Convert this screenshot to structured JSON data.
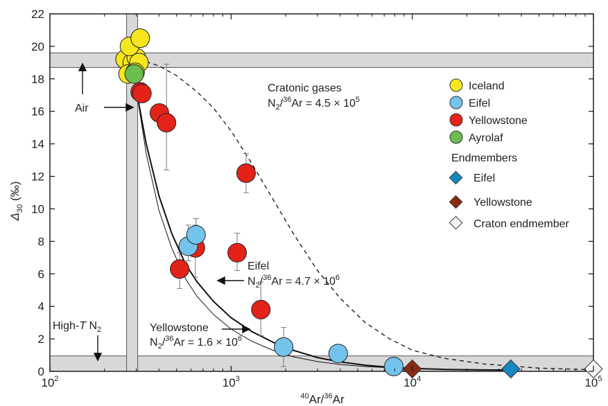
{
  "chart_data": {
    "type": "scatter",
    "xscale": "log",
    "xlim": [
      100,
      100000
    ],
    "ylim": [
      0,
      22
    ],
    "xlabel_sup": "40",
    "xlabel_mid": "Ar/",
    "xlabel_sup2": "36",
    "xlabel_end": "Ar",
    "ylabel_symbol": "Δ",
    "ylabel_sub": "30",
    "ylabel_unit": " (‰)",
    "x_ticks": [
      {
        "value": 100,
        "base": "10",
        "exp": "2"
      },
      {
        "value": 1000,
        "base": "10",
        "exp": "3"
      },
      {
        "value": 10000,
        "base": "10",
        "exp": "4"
      },
      {
        "value": 100000,
        "base": "10",
        "exp": "5"
      }
    ],
    "y_ticks": [
      0,
      2,
      4,
      6,
      8,
      10,
      12,
      14,
      16,
      18,
      20,
      22
    ],
    "colors": {
      "Iceland": "#f5e61e",
      "Eifel": "#74c3ec",
      "Yellowstone": "#e32219",
      "Ayrolaf": "#6bbd4e",
      "Eifel_endmember": "#1787c3",
      "Yellowstone_endmember": "#8a2a12",
      "Craton_endmember": "#f4f4f4",
      "band": "#d8d8d8"
    },
    "series": [
      {
        "name": "Iceland",
        "marker": "circle",
        "points": [
          {
            "x": 260,
            "y": 19.2
          },
          {
            "x": 285,
            "y": 19.0
          },
          {
            "x": 300,
            "y": 19.3
          },
          {
            "x": 310,
            "y": 19.0
          },
          {
            "x": 270,
            "y": 18.3
          },
          {
            "x": 295,
            "y": 18.4
          },
          {
            "x": 275,
            "y": 20.0
          },
          {
            "x": 315,
            "y": 20.5
          }
        ]
      },
      {
        "name": "Ayrolaf",
        "marker": "circle",
        "points": [
          {
            "x": 292,
            "y": 18.3
          }
        ]
      },
      {
        "name": "Yellowstone",
        "marker": "circle",
        "points": [
          {
            "x": 315,
            "y": 17.2,
            "err_lo": 17.2,
            "err_hi": 17.2
          },
          {
            "x": 322,
            "y": 17.1
          },
          {
            "x": 402,
            "y": 15.9
          },
          {
            "x": 440,
            "y": 15.3,
            "err_lo": 12.4,
            "err_hi": 18.9
          },
          {
            "x": 520,
            "y": 6.3,
            "err_lo": 5.1,
            "err_hi": 7.3
          },
          {
            "x": 635,
            "y": 7.6,
            "err_lo": 5.8,
            "err_hi": 9.0
          },
          {
            "x": 1080,
            "y": 7.3,
            "err_lo": 6.2,
            "err_hi": 8.5
          },
          {
            "x": 1210,
            "y": 12.2,
            "err_lo": 11.0,
            "err_hi": 13.4
          },
          {
            "x": 1460,
            "y": 3.8,
            "err_lo": 2.2,
            "err_hi": 5.5
          }
        ]
      },
      {
        "name": "Eifel",
        "marker": "circle",
        "points": [
          {
            "x": 580,
            "y": 7.7,
            "err_lo": 6.8,
            "err_hi": 9.0
          },
          {
            "x": 640,
            "y": 8.4,
            "err_lo": 7.4,
            "err_hi": 9.4
          },
          {
            "x": 1950,
            "y": 1.5,
            "err_lo": 0.3,
            "err_hi": 2.7
          },
          {
            "x": 3900,
            "y": 1.1
          },
          {
            "x": 7900,
            "y": 0.3
          }
        ]
      }
    ],
    "endmembers": [
      {
        "name": "Eifel",
        "marker": "diamond",
        "x": 35000,
        "y": 0.15
      },
      {
        "name": "Yellowstone",
        "marker": "diamond",
        "x": 10000,
        "y": 0.15
      },
      {
        "name": "Craton endmember",
        "marker": "diamond",
        "x": 100000,
        "y": 0.15
      }
    ],
    "mixing_curves": [
      {
        "id": "eifel",
        "style": "thick",
        "points": [
          [
            300,
            17.3
          ],
          [
            340,
            14.0
          ],
          [
            400,
            10.8
          ],
          [
            470,
            8.5
          ],
          [
            560,
            6.6
          ],
          [
            650,
            5.5
          ],
          [
            800,
            4.3
          ],
          [
            1000,
            3.3
          ],
          [
            1300,
            2.45
          ],
          [
            1700,
            1.8
          ],
          [
            2200,
            1.3
          ],
          [
            3000,
            0.85
          ],
          [
            4000,
            0.58
          ],
          [
            5500,
            0.38
          ],
          [
            7500,
            0.25
          ],
          [
            10000,
            0.18
          ],
          [
            15000,
            0.12
          ],
          [
            25000,
            0.09
          ],
          [
            35000,
            0.08
          ]
        ]
      },
      {
        "id": "yellowstone",
        "style": "thin",
        "points": [
          [
            300,
            17.3
          ],
          [
            340,
            13.4
          ],
          [
            400,
            9.9
          ],
          [
            470,
            7.6
          ],
          [
            560,
            5.7
          ],
          [
            650,
            4.6
          ],
          [
            800,
            3.5
          ],
          [
            1000,
            2.6
          ],
          [
            1300,
            1.85
          ],
          [
            1700,
            1.3
          ],
          [
            2200,
            0.9
          ],
          [
            3000,
            0.6
          ],
          [
            4000,
            0.42
          ],
          [
            5500,
            0.3
          ],
          [
            7500,
            0.22
          ],
          [
            10000,
            0.18
          ]
        ]
      },
      {
        "id": "craton",
        "style": "dashed",
        "points": [
          [
            310,
            19.2
          ],
          [
            400,
            18.8
          ],
          [
            500,
            18.2
          ],
          [
            650,
            17.2
          ],
          [
            800,
            16.2
          ],
          [
            1000,
            14.8
          ],
          [
            1300,
            12.8
          ],
          [
            1700,
            10.6
          ],
          [
            2200,
            8.5
          ],
          [
            3000,
            6.2
          ],
          [
            4000,
            4.5
          ],
          [
            5500,
            3.0
          ],
          [
            7500,
            2.0
          ],
          [
            10000,
            1.3
          ],
          [
            15000,
            0.8
          ],
          [
            25000,
            0.45
          ],
          [
            50000,
            0.2
          ],
          [
            100000,
            0.1
          ]
        ]
      }
    ],
    "bands": {
      "vertical_x": [
        265,
        305
      ],
      "horizontal_top_y": [
        18.7,
        19.6
      ],
      "horizontal_bottom_y": [
        0,
        0.95
      ]
    },
    "legend": {
      "placement": "top-right",
      "items": [
        {
          "label": "Iceland",
          "marker": "circle",
          "color_key": "Iceland"
        },
        {
          "label": "Eifel",
          "marker": "circle",
          "color_key": "Eifel"
        },
        {
          "label": "Yellowstone",
          "marker": "circle",
          "color_key": "Yellowstone"
        },
        {
          "label": "Ayrolaf",
          "marker": "circle",
          "color_key": "Ayrolaf"
        }
      ],
      "endmembers_title": "Endmembers",
      "endmember_items": [
        {
          "label": "Eifel",
          "marker": "diamond",
          "color_key": "Eifel_endmember"
        },
        {
          "label": "Yellowstone",
          "marker": "diamond",
          "color_key": "Yellowstone_endmember"
        },
        {
          "label": "Craton endmember",
          "marker": "diamond",
          "color_key": "Craton_endmember"
        }
      ]
    },
    "annotations": {
      "cratonic_title": "Cratonic gases",
      "cratonic_formula": "N",
      "cratonic_sub": "2",
      "cratonic_mid": "/",
      "cratonic_sup": "36",
      "cratonic_rest": "Ar = 4.5 × 10",
      "cratonic_exp": "5",
      "eifel_title": "Eifel",
      "eifel_formula": "N",
      "eifel_sub": "2",
      "eifel_mid": "/",
      "eifel_sup": "36",
      "eifel_rest": "Ar = 4.7 × 10",
      "eifel_exp": "6",
      "yellowstone_title": "Yellowstone",
      "yellowstone_formula": "N",
      "yellowstone_sub": "2",
      "yellowstone_mid": "/",
      "yellowstone_sup": "36",
      "yellowstone_rest": "Ar = 1.6 × 10",
      "yellowstone_exp": "6",
      "air": "Air",
      "hight_a": "High-",
      "hight_t": "T",
      "hight_b": " N",
      "hight_sub": "2"
    }
  }
}
